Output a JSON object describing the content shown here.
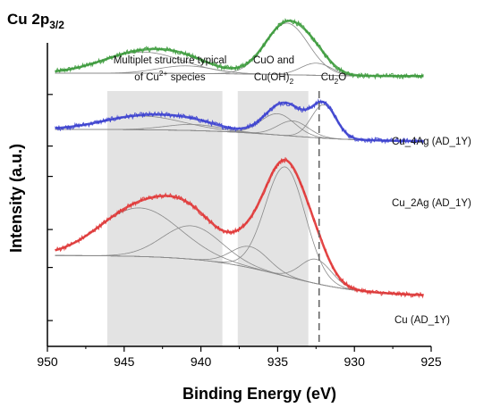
{
  "chart_data": {
    "type": "line",
    "title": "Cu 2p",
    "title_sub": "3/2",
    "xlabel": "Binding Energy (eV)",
    "ylabel": "Intensity (a.u.)",
    "xlim": [
      950,
      925
    ],
    "x_reversed": true,
    "y_ticks_labeled": false,
    "xticks": [
      950,
      945,
      940,
      935,
      930,
      925
    ],
    "colors": {
      "green": "#3a9a3a",
      "blue": "#3a3fd0",
      "red": "#e03535",
      "shade": "#e3e3e3",
      "fit": "#8a8a8a",
      "marker": "#666666"
    },
    "shaded_regions": [
      {
        "name": "multiplet",
        "x_range": [
          946.1,
          938.6
        ],
        "line1": "Multiplet structure typical",
        "line2_pre": "of Cu",
        "line2_sup": "2+",
        "line2_post": " species"
      },
      {
        "name": "cuo",
        "x_range": [
          937.6,
          933.0
        ],
        "line1": "CuO and",
        "line2_pre": "Cu(OH)",
        "line2_sub": "2",
        "line2_post": ""
      }
    ],
    "marker_line": {
      "x": 932.3,
      "label_pre": "Cu",
      "label_sub": "2",
      "label_post": "O"
    },
    "series": [
      {
        "name": "Cu_4Ag (AD_1Y)",
        "color": "green",
        "x_range": [
          949.5,
          925.5
        ],
        "baseline_left": 0.9,
        "baseline_right": 0.89,
        "peaks": [
          {
            "x": 943.8,
            "h": 0.07,
            "w": 2.6
          },
          {
            "x": 941.0,
            "h": 0.025,
            "w": 1.8
          },
          {
            "x": 934.4,
            "h": 0.17,
            "w": 1.4
          },
          {
            "x": 932.5,
            "h": 0.04,
            "w": 1.0
          }
        ]
      },
      {
        "name": "Cu_2Ag (AD_1Y)",
        "color": "blue",
        "x_range": [
          949.5,
          925.5
        ],
        "baseline_left": 0.715,
        "baseline_right": 0.675,
        "peaks": [
          {
            "x": 943.8,
            "h": 0.045,
            "w": 2.6
          },
          {
            "x": 940.5,
            "h": 0.02,
            "w": 1.8
          },
          {
            "x": 935.0,
            "h": 0.07,
            "w": 1.1
          },
          {
            "x": 934.0,
            "h": 0.05,
            "w": 1.0
          },
          {
            "x": 932.0,
            "h": 0.11,
            "w": 0.8
          }
        ]
      },
      {
        "name": "Cu (AD_1Y)",
        "color": "red",
        "x_range": [
          949.5,
          925.5
        ],
        "baseline_left": 0.3,
        "baseline_right": 0.165,
        "peaks": [
          {
            "x": 944.0,
            "h": 0.16,
            "w": 2.6
          },
          {
            "x": 940.6,
            "h": 0.11,
            "w": 1.9
          },
          {
            "x": 936.8,
            "h": 0.07,
            "w": 1.2
          },
          {
            "x": 934.5,
            "h": 0.36,
            "w": 1.3
          },
          {
            "x": 932.5,
            "h": 0.08,
            "w": 1.0
          }
        ]
      }
    ]
  }
}
